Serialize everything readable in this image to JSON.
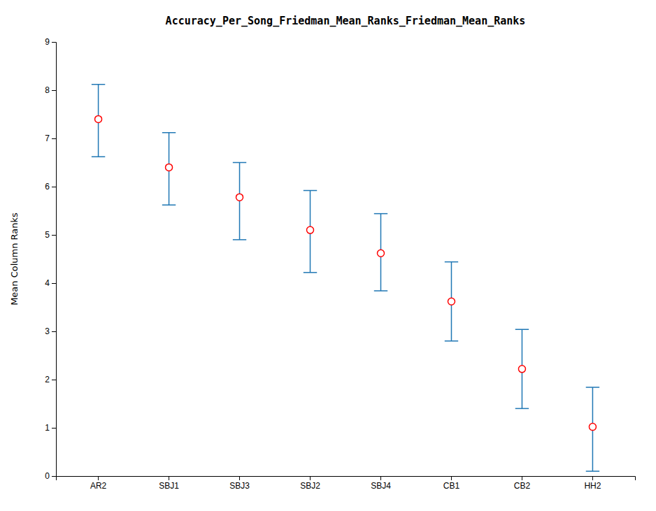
{
  "chart_data": {
    "type": "errorbar",
    "title": "Accuracy_Per_Song_Friedman_Mean_Ranks_Friedman_Mean_Ranks",
    "ylabel": "Mean Column Ranks",
    "categories": [
      "AR2",
      "SBJ1",
      "SBJ3",
      "SBJ2",
      "SBJ4",
      "CB1",
      "CB2",
      "HH2"
    ],
    "values": [
      7.4,
      6.4,
      5.78,
      5.1,
      4.62,
      3.62,
      2.22,
      1.02
    ],
    "upper_errors": [
      0.72,
      0.72,
      0.72,
      0.82,
      0.82,
      0.82,
      0.82,
      0.82
    ],
    "lower_errors": [
      0.78,
      0.78,
      0.88,
      0.88,
      0.78,
      0.82,
      0.82,
      0.92
    ],
    "color": "#ff0000",
    "ylim": [
      0,
      9
    ],
    "yticks": [
      0,
      1,
      2,
      3,
      4,
      5,
      6,
      7,
      8,
      9
    ],
    "grid": false
  }
}
